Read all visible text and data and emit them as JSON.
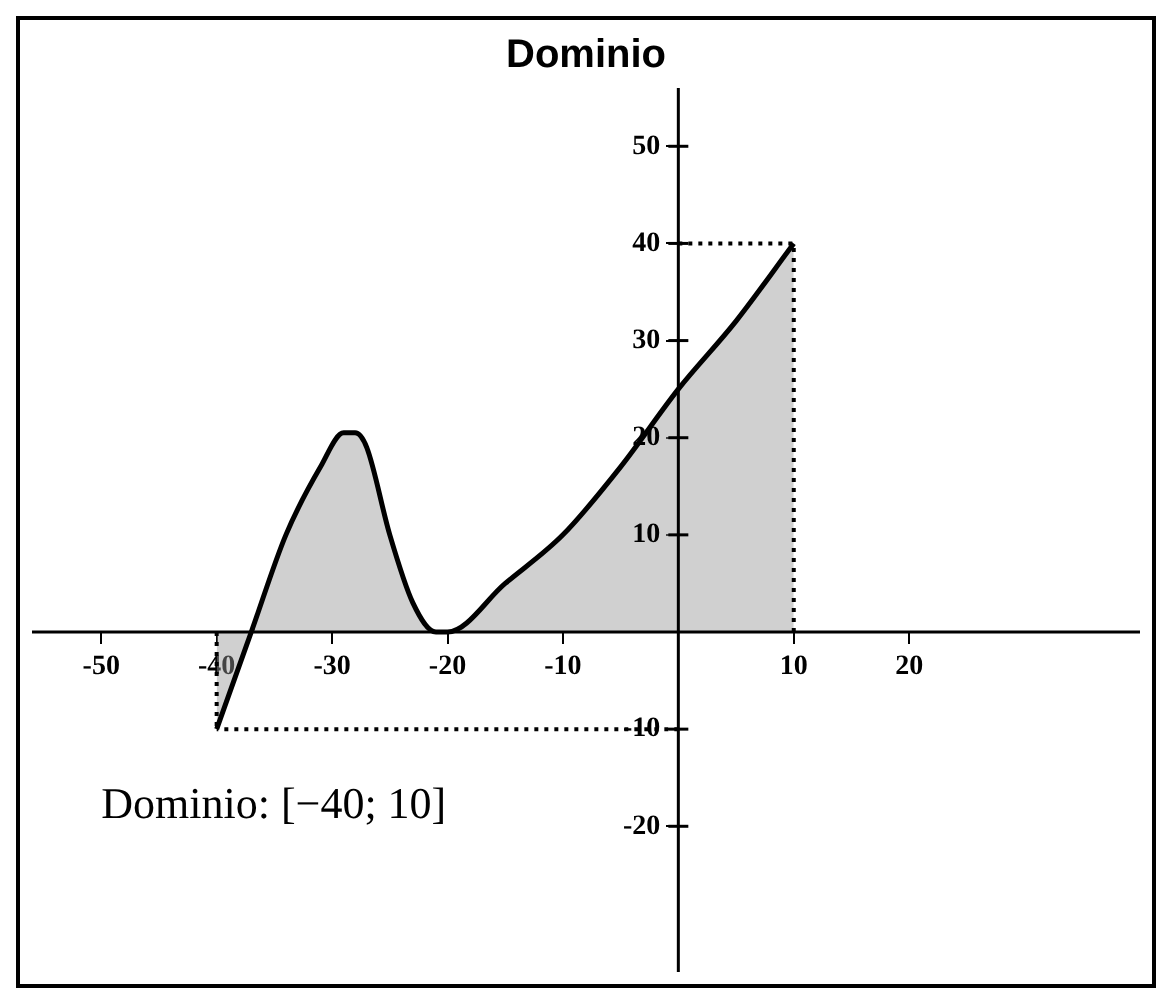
{
  "chart_data": {
    "type": "area",
    "title": "Dominio",
    "annotations": [
      "Dominio: [−40; 10]"
    ],
    "x": [
      -40,
      -37,
      -34,
      -31,
      -29,
      -28,
      -27,
      -25,
      -23,
      -21,
      -20,
      -15,
      -10,
      -5,
      0,
      5,
      10
    ],
    "series": [
      {
        "color": "#000000",
        "values": [
          -10,
          0,
          10,
          17,
          20.5,
          20.5,
          19,
          10,
          3,
          0,
          0,
          5,
          10,
          17,
          25,
          32,
          40
        ]
      }
    ],
    "xlim": [
      -56,
      40
    ],
    "ylim": [
      -35,
      56
    ],
    "xticks": [
      -50,
      -40,
      -30,
      -20,
      -10,
      10,
      20
    ],
    "yticks": [
      -20,
      -10,
      10,
      20,
      30,
      40,
      50
    ],
    "ref_lines": [
      {
        "axis": "y",
        "value": 40,
        "line_style": "dotted"
      },
      {
        "axis": "x",
        "value": 10,
        "line_style": "dotted"
      },
      {
        "axis": "y",
        "value": -10,
        "line_style": "dotted"
      },
      {
        "axis": "x",
        "value": -40,
        "line_style": "dotted"
      }
    ],
    "grid": false,
    "legend": false,
    "line_style": "solid"
  }
}
